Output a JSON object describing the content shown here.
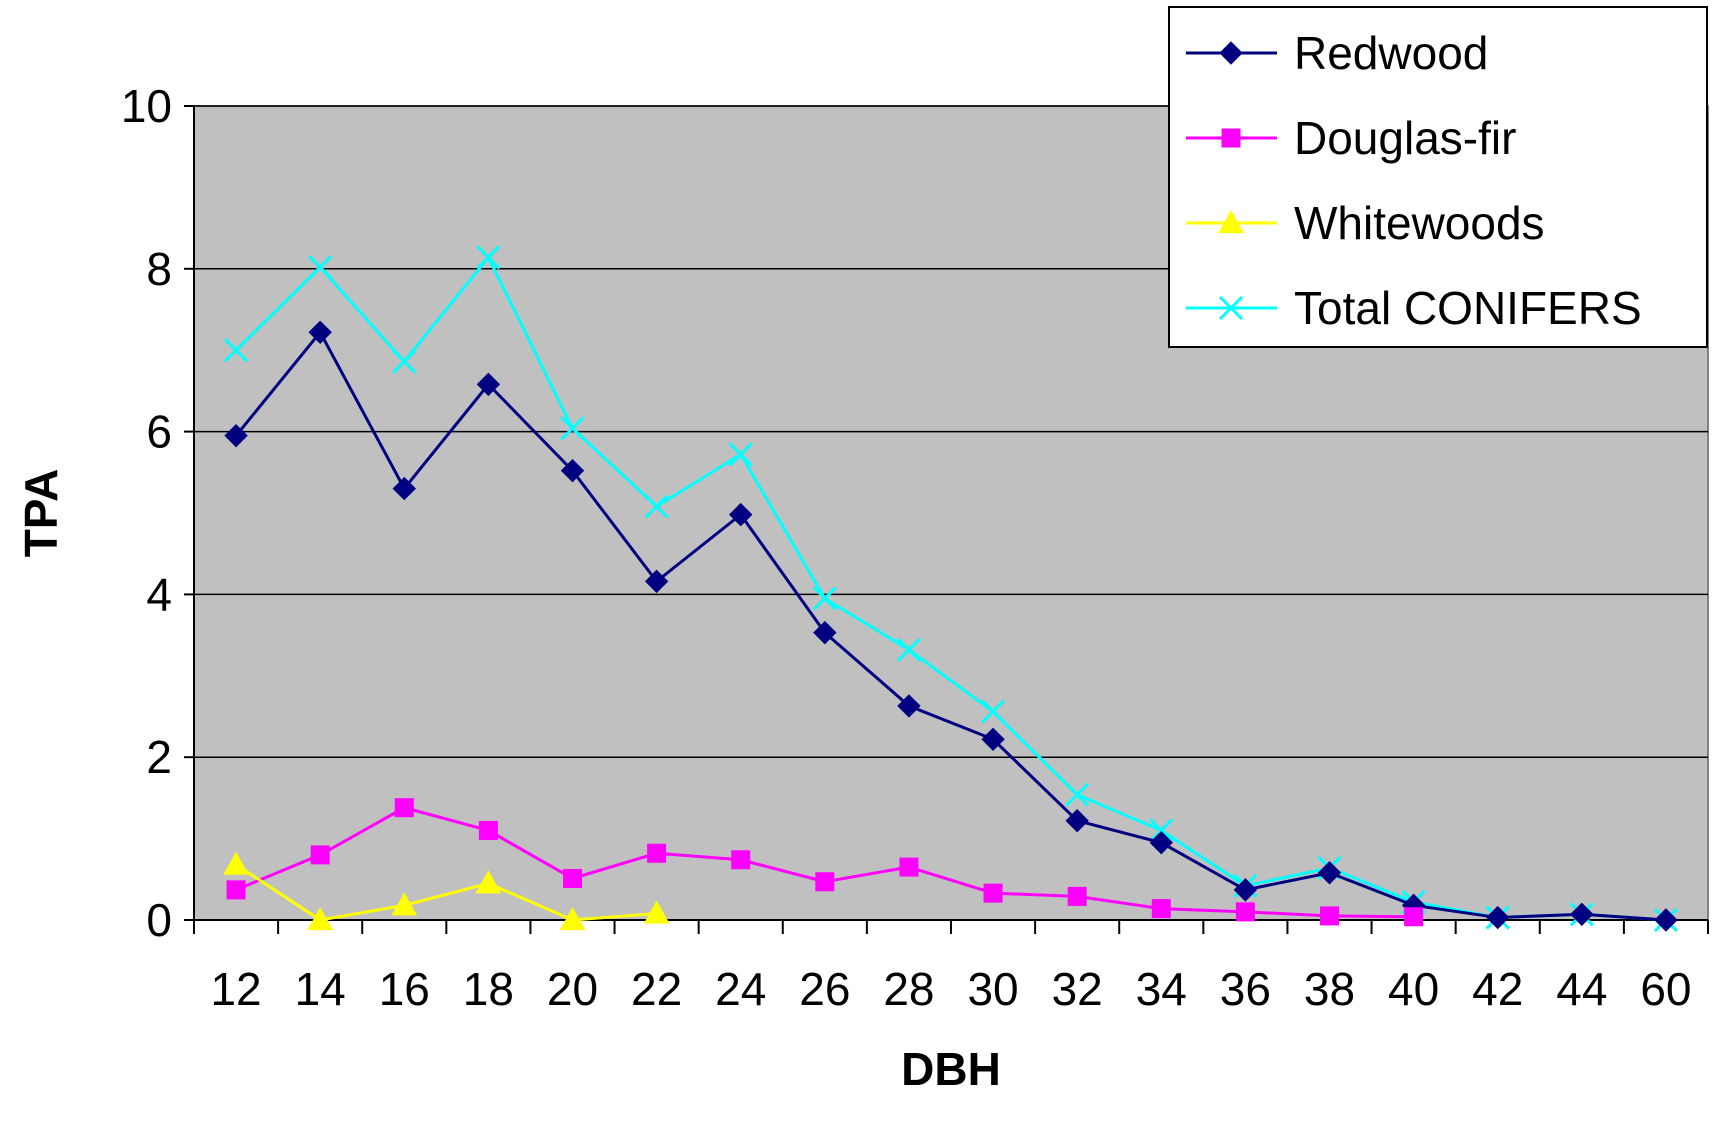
{
  "chart_data": {
    "type": "line",
    "title": "",
    "xlabel": "DBH",
    "ylabel": "TPA",
    "categories": [
      "12",
      "14",
      "16",
      "18",
      "20",
      "22",
      "24",
      "26",
      "28",
      "30",
      "32",
      "34",
      "36",
      "38",
      "40",
      "42",
      "44",
      "60"
    ],
    "ylim": [
      0,
      10
    ],
    "yticks": [
      "0",
      "2",
      "4",
      "6",
      "8",
      "10"
    ],
    "grid": true,
    "legend_position": "top-right",
    "plot_background": "#c0c0c0",
    "series": [
      {
        "name": "Redwood",
        "color": "#000080",
        "marker": "diamond",
        "values": [
          5.95,
          7.22,
          5.3,
          6.58,
          5.52,
          4.16,
          4.98,
          3.53,
          2.63,
          2.22,
          1.22,
          0.95,
          0.37,
          0.58,
          0.18,
          0.03,
          0.07,
          0.0
        ]
      },
      {
        "name": "Douglas-fir",
        "color": "#ff00ff",
        "marker": "square",
        "values": [
          0.37,
          0.8,
          1.38,
          1.1,
          0.51,
          0.82,
          0.74,
          0.47,
          0.65,
          0.33,
          0.29,
          0.14,
          0.1,
          0.05,
          0.04,
          null,
          null,
          null
        ]
      },
      {
        "name": "Whitewoods",
        "color": "#ffff00",
        "marker": "triangle",
        "values": [
          0.68,
          0.0,
          0.18,
          0.45,
          0.0,
          0.08,
          null,
          null,
          null,
          null,
          null,
          null,
          null,
          null,
          null,
          null,
          null,
          null
        ]
      },
      {
        "name": "Total CONIFERS",
        "color": "#00ffff",
        "marker": "x",
        "values": [
          7.0,
          8.02,
          6.86,
          8.14,
          6.04,
          5.08,
          5.72,
          3.95,
          3.32,
          2.56,
          1.54,
          1.1,
          0.42,
          0.64,
          0.22,
          0.03,
          0.07,
          0.0
        ]
      }
    ]
  }
}
